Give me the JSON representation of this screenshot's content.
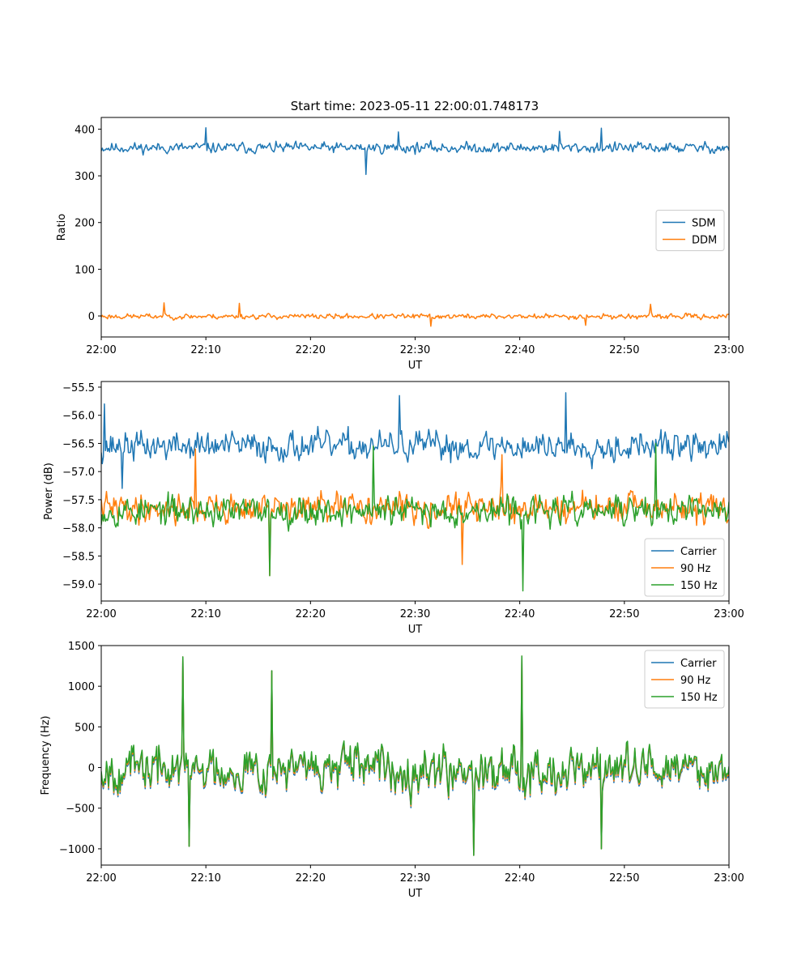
{
  "figure_title": "Start time: 2023-05-11 22:00:01.748173",
  "colors": {
    "blue": "#1f77b4",
    "orange": "#ff7f0e",
    "green": "#2ca02c"
  },
  "chart_data": [
    {
      "type": "line",
      "xlabel": "UT",
      "ylabel": "Ratio",
      "x_ticks": [
        "22:00",
        "22:10",
        "22:20",
        "22:30",
        "22:40",
        "22:50",
        "23:00"
      ],
      "xlim": [
        0,
        60
      ],
      "ylim": [
        -45,
        425
      ],
      "y_ticks": [
        0,
        100,
        200,
        300,
        400
      ],
      "y_tick_labels": [
        "0",
        "100",
        "200",
        "300",
        "400"
      ],
      "legend_position": "center-right",
      "series": [
        {
          "name": "SDM",
          "color": "#1f77b4",
          "mean": 360,
          "amplitude": 14,
          "seed": 11,
          "spikes": [
            [
              10.0,
              403
            ],
            [
              25.3,
              303
            ],
            [
              28.4,
              394
            ],
            [
              47.8,
              402
            ],
            [
              43.8,
              395
            ]
          ]
        },
        {
          "name": "DDM",
          "color": "#ff7f0e",
          "mean": -1,
          "amplitude": 7,
          "seed": 23,
          "spikes": [
            [
              6.0,
              28
            ],
            [
              13.2,
              27
            ],
            [
              31.5,
              -22
            ],
            [
              46.3,
              -20
            ],
            [
              52.5,
              25
            ]
          ]
        }
      ]
    },
    {
      "type": "line",
      "xlabel": "UT",
      "ylabel": "Power (dB)",
      "x_ticks": [
        "22:00",
        "22:10",
        "22:20",
        "22:30",
        "22:40",
        "22:50",
        "23:00"
      ],
      "xlim": [
        0,
        60
      ],
      "ylim": [
        -59.3,
        -55.4
      ],
      "y_ticks": [
        -59.0,
        -58.5,
        -58.0,
        -57.5,
        -57.0,
        -56.5,
        -56.0,
        -55.5
      ],
      "y_tick_labels": [
        "−59.0",
        "−58.5",
        "−58.0",
        "−57.5",
        "−57.0",
        "−56.5",
        "−56.0",
        "−55.5"
      ],
      "legend_position": "lower-right",
      "series": [
        {
          "name": "Carrier",
          "color": "#1f77b4",
          "mean": -56.55,
          "amplitude": 0.32,
          "seed": 37,
          "spikes": [
            [
              0.3,
              -55.8
            ],
            [
              28.5,
              -55.65
            ],
            [
              44.4,
              -55.6
            ],
            [
              2.0,
              -57.3
            ]
          ]
        },
        {
          "name": "90 Hz",
          "color": "#ff7f0e",
          "mean": -57.65,
          "amplitude": 0.32,
          "seed": 41,
          "spikes": [
            [
              16.1,
              -58.85
            ],
            [
              34.5,
              -58.65
            ],
            [
              9.0,
              -56.6
            ],
            [
              38.3,
              -56.7
            ]
          ]
        },
        {
          "name": "150 Hz",
          "color": "#2ca02c",
          "mean": -57.7,
          "amplitude": 0.32,
          "seed": 53,
          "spikes": [
            [
              40.3,
              -59.12
            ],
            [
              16.1,
              -58.85
            ],
            [
              26.0,
              -56.55
            ],
            [
              53.0,
              -56.5
            ]
          ]
        }
      ]
    },
    {
      "type": "line",
      "xlabel": "UT",
      "ylabel": "Frequency (Hz)",
      "x_ticks": [
        "22:00",
        "22:10",
        "22:20",
        "22:30",
        "22:40",
        "22:50",
        "23:00"
      ],
      "xlim": [
        0,
        60
      ],
      "ylim": [
        -1200,
        1500
      ],
      "y_ticks": [
        -1000,
        -500,
        0,
        500,
        1000,
        1500
      ],
      "y_tick_labels": [
        "−1000",
        "−500",
        "0",
        "500",
        "1000",
        "1500"
      ],
      "legend_position": "upper-right",
      "series": [
        {
          "name": "Carrier",
          "color": "#1f77b4",
          "mean": -40,
          "amplitude": 330,
          "seed": 67,
          "offset": -40,
          "spikes": [
            [
              7.8,
              1360
            ],
            [
              40.2,
              1370
            ],
            [
              35.6,
              -1080
            ],
            [
              8.4,
              -970
            ],
            [
              47.8,
              -1000
            ],
            [
              16.3,
              1190
            ]
          ]
        },
        {
          "name": "90 Hz",
          "color": "#ff7f0e",
          "mean": -20,
          "amplitude": 330,
          "seed": 67,
          "offset": -20,
          "spikes": [
            [
              7.8,
              1360
            ],
            [
              40.2,
              1370
            ],
            [
              35.6,
              -1080
            ],
            [
              8.4,
              -970
            ],
            [
              47.8,
              -1000
            ],
            [
              16.3,
              1190
            ]
          ]
        },
        {
          "name": "150 Hz",
          "color": "#2ca02c",
          "mean": 0,
          "amplitude": 330,
          "seed": 67,
          "offset": 0,
          "spikes": [
            [
              7.8,
              1360
            ],
            [
              40.2,
              1370
            ],
            [
              35.6,
              -1080
            ],
            [
              8.4,
              -970
            ],
            [
              47.8,
              -1000
            ],
            [
              16.3,
              1190
            ]
          ]
        }
      ]
    }
  ]
}
